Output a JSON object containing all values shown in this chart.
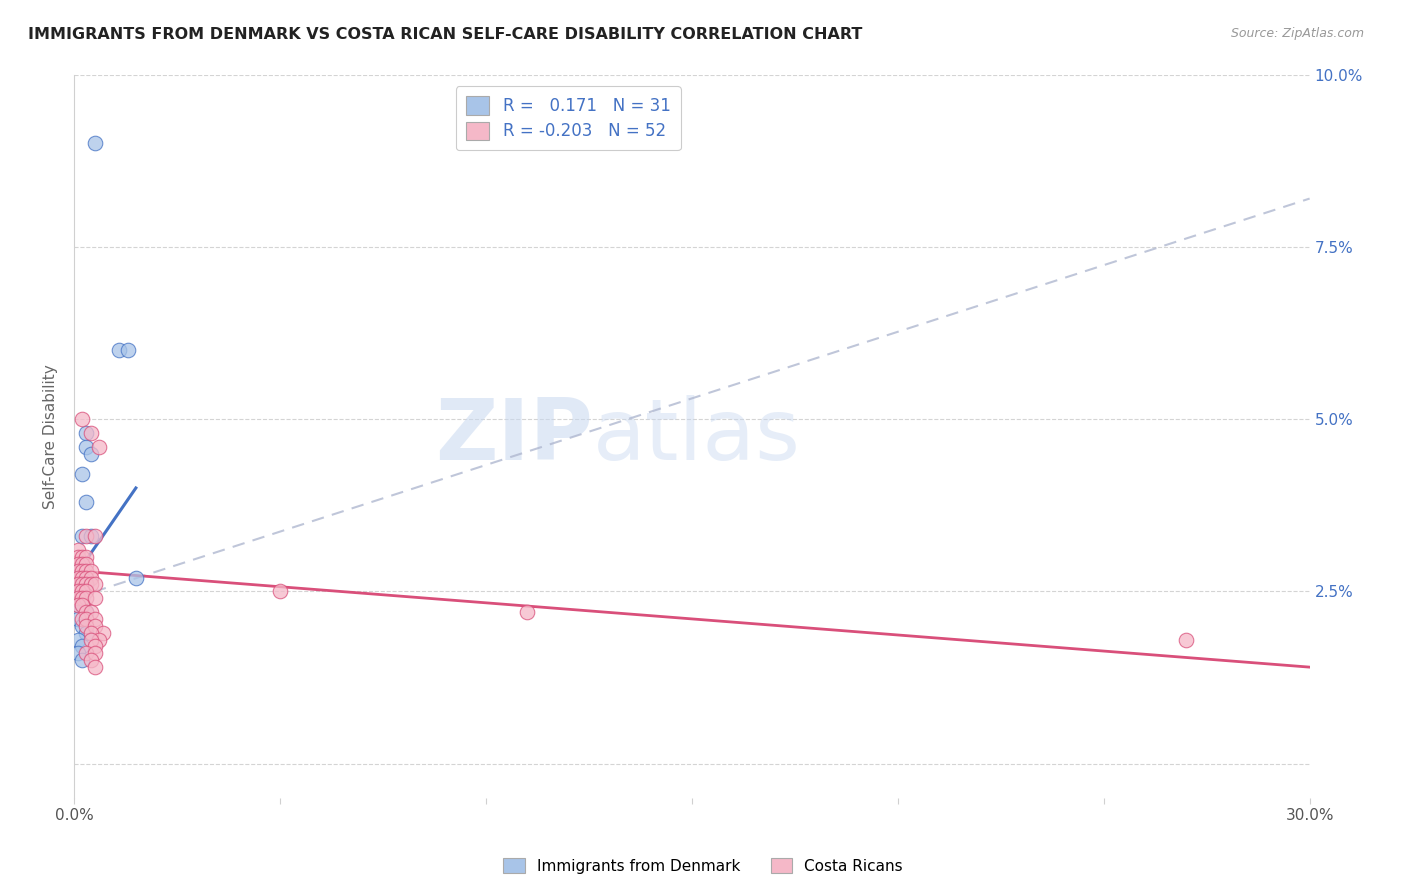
{
  "title": "IMMIGRANTS FROM DENMARK VS COSTA RICAN SELF-CARE DISABILITY CORRELATION CHART",
  "source": "Source: ZipAtlas.com",
  "ylabel": "Self-Care Disability",
  "x_min": 0.0,
  "x_max": 0.3,
  "y_min": -0.005,
  "y_max": 0.1,
  "x_ticks": [
    0.0,
    0.05,
    0.1,
    0.15,
    0.2,
    0.25,
    0.3
  ],
  "y_ticks": [
    0.0,
    0.025,
    0.05,
    0.075,
    0.1
  ],
  "y_tick_labels_right": [
    "",
    "2.5%",
    "5.0%",
    "7.5%",
    "10.0%"
  ],
  "color_blue": "#a8c4e8",
  "color_pink": "#f5b8c8",
  "line_blue": "#4472c4",
  "line_pink": "#d94f7a",
  "line_dashed": "#b0b8d0",
  "watermark_zip": "ZIP",
  "watermark_atlas": "atlas",
  "dk_line_x": [
    0.0,
    0.015
  ],
  "dk_line_y": [
    0.027,
    0.04
  ],
  "cr_line_x": [
    0.0,
    0.3
  ],
  "cr_line_y": [
    0.028,
    0.014
  ],
  "dash_line_x": [
    0.0,
    0.3
  ],
  "dash_line_y": [
    0.024,
    0.082
  ],
  "denmark_points": [
    [
      0.005,
      0.09
    ],
    [
      0.011,
      0.06
    ],
    [
      0.013,
      0.06
    ],
    [
      0.003,
      0.048
    ],
    [
      0.003,
      0.046
    ],
    [
      0.004,
      0.045
    ],
    [
      0.002,
      0.042
    ],
    [
      0.003,
      0.038
    ],
    [
      0.002,
      0.033
    ],
    [
      0.004,
      0.033
    ],
    [
      0.002,
      0.029
    ],
    [
      0.001,
      0.028
    ],
    [
      0.002,
      0.028
    ],
    [
      0.001,
      0.027
    ],
    [
      0.002,
      0.026
    ],
    [
      0.003,
      0.026
    ],
    [
      0.001,
      0.025
    ],
    [
      0.002,
      0.025
    ],
    [
      0.001,
      0.024
    ],
    [
      0.002,
      0.024
    ],
    [
      0.001,
      0.023
    ],
    [
      0.002,
      0.023
    ],
    [
      0.003,
      0.022
    ],
    [
      0.001,
      0.021
    ],
    [
      0.002,
      0.02
    ],
    [
      0.003,
      0.019
    ],
    [
      0.001,
      0.018
    ],
    [
      0.002,
      0.017
    ],
    [
      0.001,
      0.016
    ],
    [
      0.002,
      0.015
    ],
    [
      0.015,
      0.027
    ]
  ],
  "costarica_points": [
    [
      0.002,
      0.05
    ],
    [
      0.004,
      0.048
    ],
    [
      0.006,
      0.046
    ],
    [
      0.003,
      0.033
    ],
    [
      0.005,
      0.033
    ],
    [
      0.001,
      0.031
    ],
    [
      0.001,
      0.03
    ],
    [
      0.002,
      0.03
    ],
    [
      0.003,
      0.03
    ],
    [
      0.001,
      0.029
    ],
    [
      0.002,
      0.029
    ],
    [
      0.003,
      0.029
    ],
    [
      0.001,
      0.028
    ],
    [
      0.002,
      0.028
    ],
    [
      0.003,
      0.028
    ],
    [
      0.004,
      0.028
    ],
    [
      0.001,
      0.027
    ],
    [
      0.002,
      0.027
    ],
    [
      0.003,
      0.027
    ],
    [
      0.004,
      0.027
    ],
    [
      0.001,
      0.026
    ],
    [
      0.002,
      0.026
    ],
    [
      0.003,
      0.026
    ],
    [
      0.004,
      0.026
    ],
    [
      0.005,
      0.026
    ],
    [
      0.001,
      0.025
    ],
    [
      0.002,
      0.025
    ],
    [
      0.003,
      0.025
    ],
    [
      0.001,
      0.024
    ],
    [
      0.002,
      0.024
    ],
    [
      0.003,
      0.024
    ],
    [
      0.005,
      0.024
    ],
    [
      0.001,
      0.023
    ],
    [
      0.002,
      0.023
    ],
    [
      0.003,
      0.022
    ],
    [
      0.004,
      0.022
    ],
    [
      0.002,
      0.021
    ],
    [
      0.003,
      0.021
    ],
    [
      0.005,
      0.021
    ],
    [
      0.003,
      0.02
    ],
    [
      0.005,
      0.02
    ],
    [
      0.007,
      0.019
    ],
    [
      0.004,
      0.019
    ],
    [
      0.006,
      0.018
    ],
    [
      0.004,
      0.018
    ],
    [
      0.005,
      0.017
    ],
    [
      0.003,
      0.016
    ],
    [
      0.005,
      0.016
    ],
    [
      0.004,
      0.015
    ],
    [
      0.005,
      0.014
    ],
    [
      0.05,
      0.025
    ],
    [
      0.11,
      0.022
    ],
    [
      0.27,
      0.018
    ]
  ]
}
